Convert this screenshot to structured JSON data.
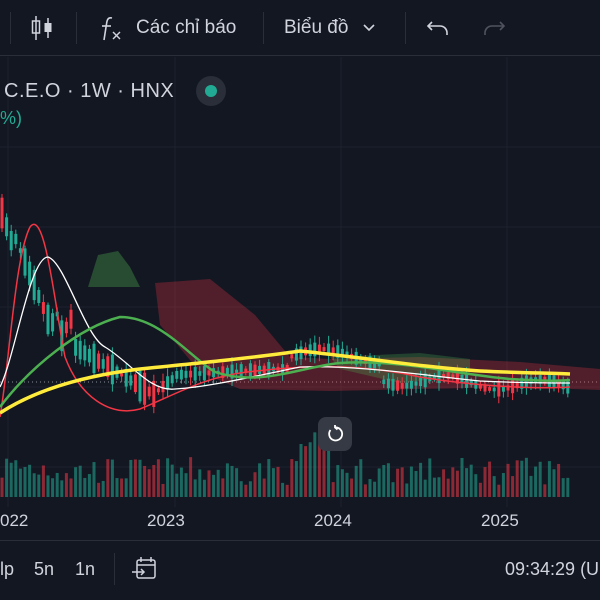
{
  "toolbar": {
    "indicators_label": "Các chỉ báo",
    "chart_type_label": "Biểu đồ",
    "icons": [
      "candles-icon",
      "function-icon",
      "chevron-down-icon",
      "undo-icon",
      "redo-icon"
    ]
  },
  "legend": {
    "symbol_text": "C.E.O · 1W · HNX",
    "change_fragment": "%)",
    "status_color": "#22ab94"
  },
  "xaxis": {
    "labels": [
      "022",
      "2023",
      "2024",
      "2025"
    ]
  },
  "bottom": {
    "ranges": [
      "lp",
      "5n",
      "1n"
    ],
    "clock": "09:34:29 (U"
  },
  "colors": {
    "background": "#131722",
    "up": "#22ab94",
    "down": "#f23645",
    "ma_fast": "#f23645",
    "ma_white": "#ffffff",
    "ma_green": "#4caf50",
    "ma_yellow": "#ffeb3b"
  }
}
